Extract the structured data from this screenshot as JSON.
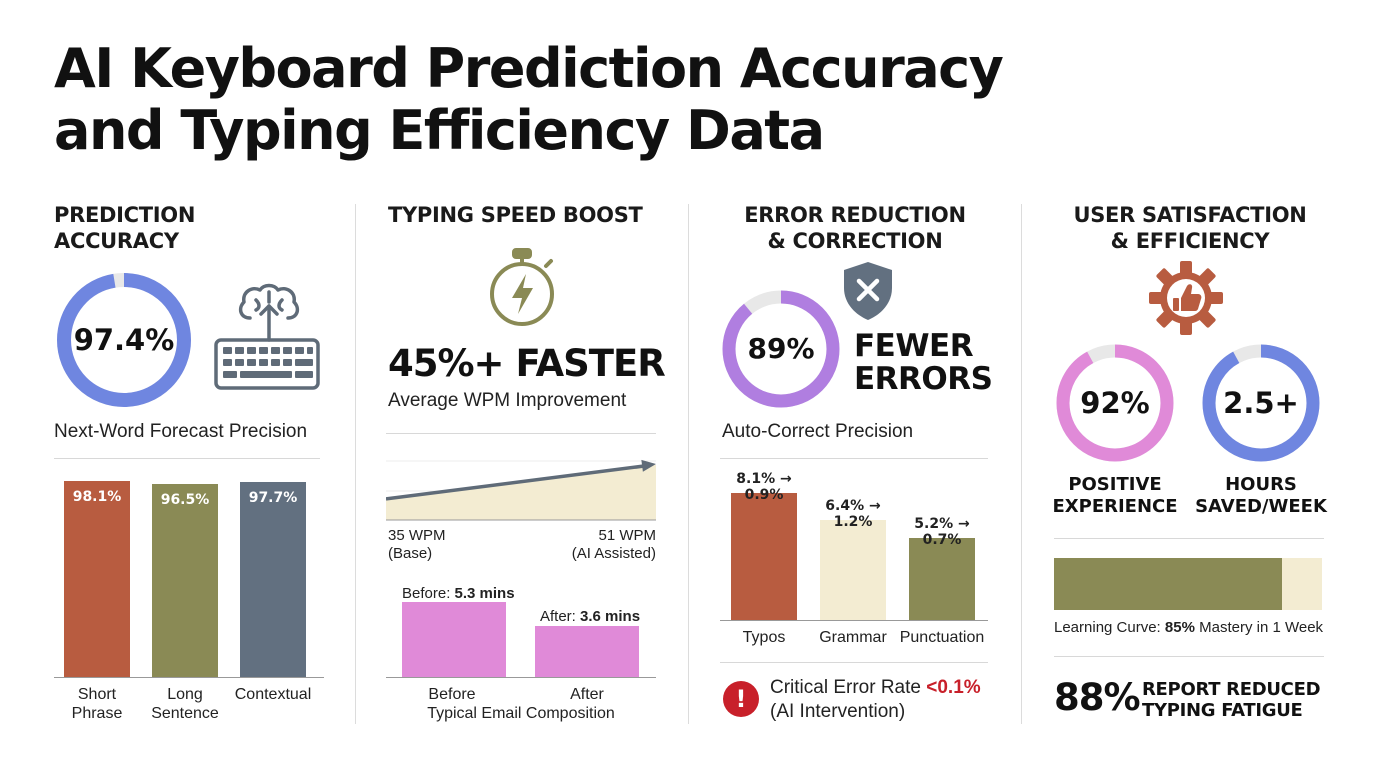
{
  "title_line1": "AI Keyboard Prediction Accuracy",
  "title_line2": "and Typing Efficiency Data",
  "colors": {
    "rust": "#b85c40",
    "olive": "#8a8a55",
    "slate": "#627080",
    "periwinkle": "#6f86e0",
    "violet": "#b07ee0",
    "pink": "#e08ad8",
    "cream": "#f3ecd2",
    "critical_red": "#c8202a"
  },
  "prediction": {
    "heading_line1": "PREDICTION",
    "heading_line2": "ACCURACY",
    "ring_value": "97.4%",
    "ring_fraction": 0.974,
    "icon": "brain-keyboard-icon",
    "caption": "Next-Word Forecast Precision"
  },
  "speed": {
    "heading": "TYPING SPEED BOOST",
    "icon": "stopwatch-lightning-icon",
    "headline": "45%+ FASTER",
    "subline": "Average WPM Improvement",
    "base_label_line1": "35 WPM",
    "base_label_line2": "(Base)",
    "ai_label_line1": "51 WPM",
    "ai_label_line2": "(AI Assisted)",
    "before_prefix": "Before: ",
    "before_value": "5.3 mins",
    "after_prefix": "After: ",
    "after_value": "3.6 mins",
    "axis_title": "Typical Email Composition"
  },
  "errors": {
    "heading_line1": "ERROR REDUCTION",
    "heading_line2": "& CORRECTION",
    "icon": "shield-x-icon",
    "ring_value": "89%",
    "ring_fraction": 0.89,
    "side_line1": "FEWER",
    "side_line2": "ERRORS",
    "caption": "Auto-Correct Precision",
    "critical_label": "Critical Error Rate ",
    "critical_value": "<0.1%",
    "critical_sub": "(AI Intervention)",
    "alert_icon": "exclamation-icon",
    "alert_glyph": "!"
  },
  "satisfaction": {
    "heading_line1": "USER SATISFACTION",
    "heading_line2": "& EFFICIENCY",
    "icon": "gear-thumbs-up-icon",
    "ring1_value": "92%",
    "ring1_fraction": 0.92,
    "ring1_label_line1": "POSITIVE",
    "ring1_label_line2": "EXPERIENCE",
    "ring2_value": "2.5+",
    "ring2_fraction": 0.92,
    "ring2_label_line1": "HOURS",
    "ring2_label_line2": "SAVED/WEEK",
    "learning_prefix": "Learning Curve: ",
    "learning_value": "85%",
    "learning_suffix": " Mastery in 1 Week",
    "learning_fraction": 0.85,
    "fatigue_value": "88%",
    "fatigue_line1": "REPORT REDUCED",
    "fatigue_line2": "TYPING FATIGUE"
  },
  "chart_data": [
    {
      "type": "bar",
      "categories": [
        "Short Phrase",
        "Long Sentence",
        "Contextual"
      ],
      "cat_lines": [
        [
          "Short",
          "Phrase"
        ],
        [
          "Long",
          "Sentence"
        ],
        [
          "Contextual"
        ]
      ],
      "values": [
        98.1,
        96.5,
        97.7
      ],
      "labels": [
        "98.1%",
        "96.5%",
        "97.7%"
      ],
      "ylim": [
        0,
        100
      ]
    },
    {
      "type": "area",
      "x": [
        "35 WPM (Base)",
        "51 WPM (AI Assisted)"
      ],
      "values": [
        35,
        51
      ],
      "ylim": [
        25,
        60
      ]
    },
    {
      "type": "bar",
      "categories": [
        "Before",
        "After"
      ],
      "values": [
        5.3,
        3.6
      ],
      "ylim": [
        0,
        7.5
      ]
    },
    {
      "type": "bar",
      "categories": [
        "Typos",
        "Grammar",
        "Punctuation"
      ],
      "values": [
        8.1,
        6.4,
        5.2
      ],
      "values_after": [
        0.9,
        1.2,
        0.7
      ],
      "labels": [
        "8.1% → 0.9%",
        "6.4% → 1.2%",
        "5.2% → 0.7%"
      ],
      "ylim": [
        0,
        10
      ]
    }
  ]
}
